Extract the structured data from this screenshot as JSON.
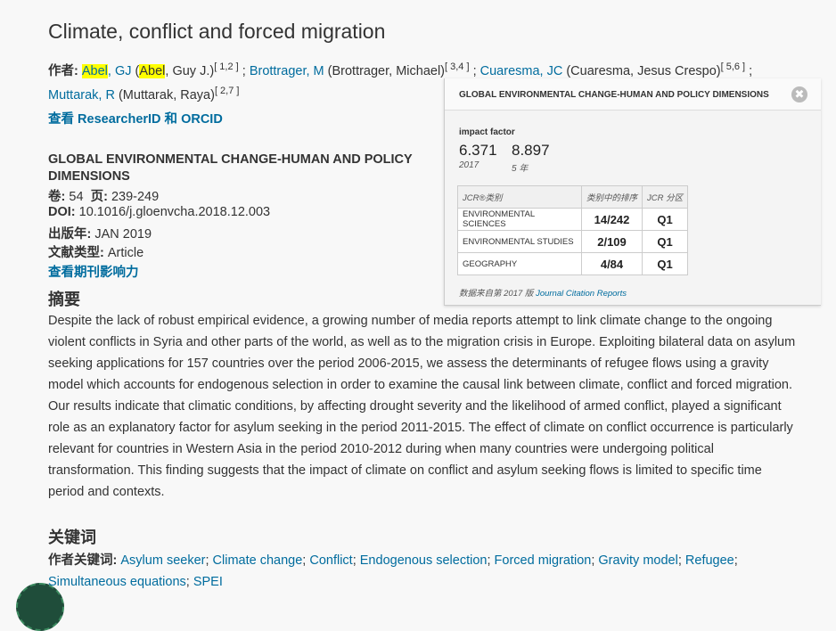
{
  "title": "Climate, conflict and forced migration",
  "authors_label": "作者:",
  "authors": [
    {
      "short_hl": "Abel",
      "short_rest": ", GJ",
      "full_pre": " (",
      "full_hl": "Abel",
      "full_rest": ", Guy J.)",
      "sup": "[ 1,2 ]"
    },
    {
      "short": "Brottrager, M",
      "full": " (Brottrager, Michael)",
      "sup": "[ 3,4 ]"
    },
    {
      "short": "Cuaresma, JC",
      "full": " (Cuaresma, Jesus Crespo)",
      "sup": "[ 5,6 ]"
    },
    {
      "short": "Muttarak, R",
      "full": " (Muttarak, Raya)",
      "sup": "[ 2,7 ]"
    }
  ],
  "researcher_link": "查看 ResearcherID 和 ORCID",
  "journal": "GLOBAL ENVIRONMENTAL CHANGE-HUMAN AND POLICY DIMENSIONS",
  "volume_label": "卷:",
  "volume": "54",
  "pages_label": "页:",
  "pages": "239-249",
  "doi_label": "DOI:",
  "doi": "10.1016/j.gloenvcha.2018.12.003",
  "pubyear_label": "出版年:",
  "pubyear": "JAN 2019",
  "doctype_label": "文献类型:",
  "doctype": "Article",
  "impact_link": "查看期刊影响力",
  "abstract_heading": "摘要",
  "abstract": "Despite the lack of robust empirical evidence, a growing number of media reports attempt to link climate change to the ongoing violent conflicts in Syria and other parts of the world, as well as to the migration crisis in Europe. Exploiting bilateral data on asylum seeking applications for 157 countries over the period 2006-2015, we assess the determinants of refugee flows using a gravity model which accounts for endogenous selection in order to examine the causal link between climate, conflict and forced migration. Our results indicate that climatic conditions, by affecting drought severity and the likelihood of armed conflict, played a significant role as an explanatory factor for asylum seeking in the period 2011-2015. The effect of climate on conflict occurrence is particularly relevant for countries in Western Asia in the period 2010-2012 during when many countries were undergoing political transformation. This finding suggests that the impact of climate on conflict and asylum seeking flows is limited to specific time period and contexts.",
  "keywords_heading": "关键词",
  "author_keywords_label": "作者关键词:",
  "keywords": [
    "Asylum seeker",
    "Climate change",
    "Conflict",
    "Endogenous selection",
    "Forced migration",
    "Gravity model",
    "Refugee",
    "Simultaneous equations",
    "SPEI"
  ],
  "popup": {
    "title": "GLOBAL ENVIRONMENTAL CHANGE-HUMAN AND POLICY DIMENSIONS",
    "close": "✖",
    "if_label": "impact factor",
    "if_value": "6.371",
    "if_year": "2017",
    "if5_value": "8.897",
    "if5_label": "5 年",
    "headers": [
      "JCR®类别",
      "类别中的排序",
      "JCR 分区"
    ],
    "rows": [
      [
        "ENVIRONMENTAL SCIENCES",
        "14/242",
        "Q1"
      ],
      [
        "ENVIRONMENTAL STUDIES",
        "2/109",
        "Q1"
      ],
      [
        "GEOGRAPHY",
        "4/84",
        "Q1"
      ]
    ],
    "source_prefix": "数据来自第 2017 版 ",
    "source_link": "Journal Citation Reports"
  }
}
